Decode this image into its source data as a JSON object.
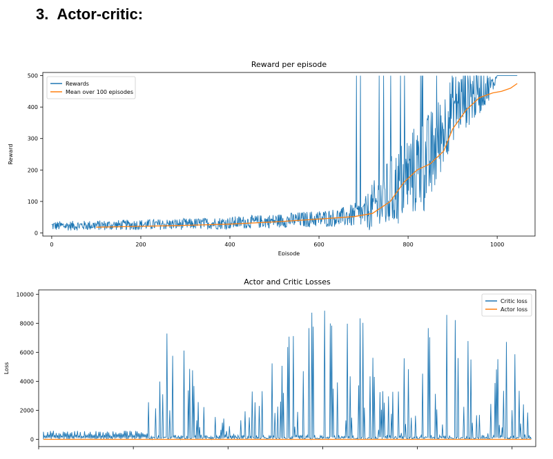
{
  "section": {
    "number": "3.",
    "title": "Actor-critic:"
  },
  "colors": {
    "blue": "#1f77b4",
    "orange": "#ff7f0e",
    "axis": "#000000"
  },
  "chart_data": [
    {
      "type": "line",
      "title": "Reward per episode",
      "xlabel": "Episode",
      "ylabel": "Reward",
      "xlim": [
        -20,
        1085
      ],
      "ylim": [
        -10,
        510
      ],
      "xticks": [
        0,
        200,
        400,
        600,
        800,
        1000
      ],
      "yticks": [
        0,
        100,
        200,
        300,
        400,
        500
      ],
      "legend_position": "top-left",
      "grid": false,
      "series": [
        {
          "name": "Rewards",
          "color": "#1f77b4",
          "kind": "noisy",
          "points": [
            [
              0,
              22
            ],
            [
              100,
              24
            ],
            [
              200,
              26
            ],
            [
              300,
              28
            ],
            [
              400,
              32
            ],
            [
              500,
              38
            ],
            [
              600,
              45
            ],
            [
              650,
              50
            ],
            [
              700,
              60
            ],
            [
              720,
              80
            ],
            [
              750,
              110
            ],
            [
              780,
              150
            ],
            [
              800,
              185
            ],
            [
              830,
              210
            ],
            [
              850,
              230
            ],
            [
              870,
              300
            ],
            [
              900,
              400
            ],
            [
              930,
              430
            ],
            [
              960,
              450
            ],
            [
              990,
              470
            ],
            [
              1000,
              500
            ],
            [
              1045,
              500
            ]
          ],
          "noise": [
            [
              0,
              15
            ],
            [
              300,
              18
            ],
            [
              500,
              22
            ],
            [
              650,
              30
            ],
            [
              700,
              45
            ],
            [
              740,
              110
            ],
            [
              800,
              140
            ],
            [
              850,
              160
            ],
            [
              880,
              120
            ],
            [
              950,
              90
            ],
            [
              990,
              30
            ],
            [
              1000,
              0
            ],
            [
              1045,
              0
            ]
          ]
        },
        {
          "name": "Mean over 100 episodes",
          "color": "#ff7f0e",
          "kind": "smooth",
          "points": [
            [
              100,
              18
            ],
            [
              200,
              21
            ],
            [
              300,
              24
            ],
            [
              400,
              28
            ],
            [
              500,
              35
            ],
            [
              600,
              44
            ],
            [
              680,
              52
            ],
            [
              720,
              62
            ],
            [
              760,
              100
            ],
            [
              790,
              160
            ],
            [
              820,
              200
            ],
            [
              850,
              220
            ],
            [
              880,
              260
            ],
            [
              900,
              330
            ],
            [
              930,
              390
            ],
            [
              960,
              430
            ],
            [
              990,
              445
            ],
            [
              1010,
              450
            ],
            [
              1030,
              460
            ],
            [
              1045,
              475
            ]
          ]
        }
      ]
    },
    {
      "type": "line",
      "title": "Actor and Critic Losses",
      "xlabel": "",
      "ylabel": "Loss",
      "xlim": [
        0,
        1050
      ],
      "ylim": [
        -500,
        10300
      ],
      "yticks": [
        0,
        2000,
        4000,
        6000,
        8000,
        10000
      ],
      "xticks": [
        0,
        200,
        400,
        600,
        800,
        1000
      ],
      "legend_position": "top-right",
      "grid": false,
      "series": [
        {
          "name": "Critic loss",
          "color": "#1f77b4",
          "kind": "spiky",
          "envelope": [
            [
              0,
              400
            ],
            [
              100,
              500
            ],
            [
              150,
              600
            ],
            [
              200,
              800
            ],
            [
              240,
              8500
            ],
            [
              300,
              6800
            ],
            [
              350,
              3000
            ],
            [
              400,
              1500
            ],
            [
              480,
              5000
            ],
            [
              560,
              8800
            ],
            [
              600,
              9200
            ],
            [
              700,
              8600
            ],
            [
              740,
              3000
            ],
            [
              800,
              9200
            ],
            [
              850,
              9800
            ],
            [
              900,
              8000
            ],
            [
              950,
              4500
            ],
            [
              1000,
              7800
            ],
            [
              1050,
              5000
            ]
          ]
        },
        {
          "name": "Actor loss",
          "color": "#ff7f0e",
          "kind": "flat",
          "value": 0
        }
      ]
    }
  ]
}
